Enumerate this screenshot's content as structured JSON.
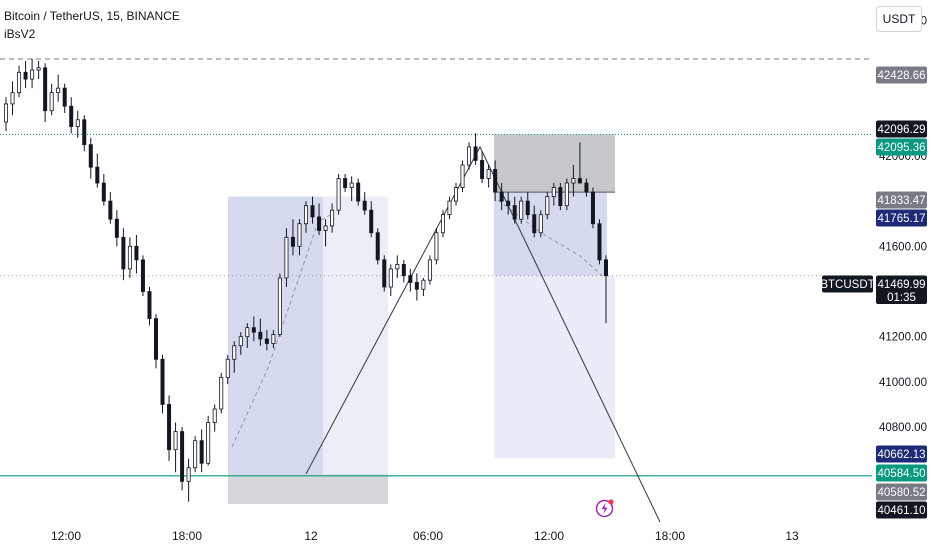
{
  "header": {
    "symbol_title": "Bitcoin / TetherUS, 15, BINANCE",
    "indicator": "iBsV2",
    "currency": "USDT"
  },
  "colors": {
    "up": "#ffffff",
    "down": "#131722",
    "box_blue": "#5c6bc0",
    "box_gray": "#787b86",
    "teal": "#089981",
    "navy": "#1e2a78",
    "trend": "#434651",
    "bolt": "#9c27b0"
  },
  "icons": {
    "alert": "bolt-icon"
  },
  "chart_data": {
    "type": "candlestick",
    "title": "Bitcoin / TetherUS, 15, BINANCE",
    "x_ticks": [
      "12:00",
      "18:00",
      "12",
      "06:00",
      "12:00",
      "18:00",
      "13"
    ],
    "y_ticks": [
      40800,
      41000,
      41200,
      41600,
      42000,
      42600
    ],
    "ylim": [
      40380,
      42690
    ],
    "grid": false,
    "price_badges": [
      {
        "name": "level",
        "value": "42428.66",
        "style": "gray"
      },
      {
        "name": "level",
        "value": "42096.29",
        "style": "black"
      },
      {
        "name": "level",
        "value": "42095.36",
        "style": "teal"
      },
      {
        "name": "level",
        "value": "41833.47",
        "style": "gray"
      },
      {
        "name": "level",
        "value": "41765.17",
        "style": "navy"
      },
      {
        "name": "symbol",
        "value": "BTCUSDT",
        "style": "black"
      },
      {
        "name": "last",
        "value": "41469.99",
        "style": "black"
      },
      {
        "name": "countdown",
        "value": "01:35",
        "style": "black"
      },
      {
        "name": "level",
        "value": "40662.13",
        "style": "navy"
      },
      {
        "name": "level",
        "value": "40584.50",
        "style": "teal"
      },
      {
        "name": "level",
        "value": "40580.52",
        "style": "gray"
      },
      {
        "name": "level",
        "value": "40461.10",
        "style": "black"
      }
    ],
    "candles": [
      [
        42150,
        42260,
        42110,
        42230
      ],
      [
        42230,
        42330,
        42180,
        42280
      ],
      [
        42280,
        42400,
        42260,
        42370
      ],
      [
        42370,
        42420,
        42300,
        42340
      ],
      [
        42340,
        42430,
        42300,
        42380
      ],
      [
        42380,
        42420,
        42340,
        42390
      ],
      [
        42390,
        42410,
        42150,
        42200
      ],
      [
        42200,
        42320,
        42180,
        42280
      ],
      [
        42280,
        42360,
        42240,
        42300
      ],
      [
        42300,
        42320,
        42190,
        42220
      ],
      [
        42220,
        42260,
        42100,
        42130
      ],
      [
        42130,
        42200,
        42080,
        42160
      ],
      [
        42160,
        42180,
        42020,
        42050
      ],
      [
        42050,
        42080,
        41900,
        41950
      ],
      [
        41950,
        42010,
        41860,
        41880
      ],
      [
        41880,
        41920,
        41780,
        41800
      ],
      [
        41800,
        41840,
        41700,
        41720
      ],
      [
        41720,
        41760,
        41600,
        41640
      ],
      [
        41640,
        41680,
        41450,
        41500
      ],
      [
        41500,
        41640,
        41460,
        41600
      ],
      [
        41600,
        41650,
        41480,
        41540
      ],
      [
        41540,
        41560,
        41380,
        41400
      ],
      [
        41400,
        41420,
        41250,
        41280
      ],
      [
        41280,
        41300,
        41060,
        41100
      ],
      [
        41100,
        41120,
        40860,
        40900
      ],
      [
        40900,
        40940,
        40650,
        40700
      ],
      [
        40700,
        40820,
        40600,
        40780
      ],
      [
        40780,
        40800,
        40520,
        40560
      ],
      [
        40560,
        40660,
        40470,
        40620
      ],
      [
        40620,
        40760,
        40600,
        40740
      ],
      [
        40740,
        40790,
        40600,
        40640
      ],
      [
        40640,
        40850,
        40630,
        40820
      ],
      [
        40820,
        40900,
        40780,
        40880
      ],
      [
        40880,
        41040,
        40860,
        41020
      ],
      [
        41020,
        41120,
        40990,
        41100
      ],
      [
        41100,
        41180,
        41040,
        41160
      ],
      [
        41160,
        41220,
        41120,
        41200
      ],
      [
        41200,
        41260,
        41150,
        41240
      ],
      [
        41240,
        41290,
        41180,
        41220
      ],
      [
        41220,
        41280,
        41160,
        41190
      ],
      [
        41190,
        41230,
        41140,
        41170
      ],
      [
        41170,
        41230,
        41150,
        41210
      ],
      [
        41210,
        41480,
        41200,
        41460
      ],
      [
        41460,
        41680,
        41420,
        41640
      ],
      [
        41640,
        41720,
        41560,
        41600
      ],
      [
        41600,
        41720,
        41560,
        41700
      ],
      [
        41700,
        41800,
        41660,
        41780
      ],
      [
        41780,
        41820,
        41700,
        41730
      ],
      [
        41730,
        41790,
        41650,
        41670
      ],
      [
        41670,
        41720,
        41600,
        41690
      ],
      [
        41690,
        41790,
        41660,
        41760
      ],
      [
        41760,
        41920,
        41740,
        41900
      ],
      [
        41900,
        41920,
        41840,
        41860
      ],
      [
        41860,
        41910,
        41800,
        41880
      ],
      [
        41880,
        41900,
        41780,
        41800
      ],
      [
        41800,
        41840,
        41740,
        41760
      ],
      [
        41760,
        41800,
        41640,
        41660
      ],
      [
        41660,
        41680,
        41520,
        41540
      ],
      [
        41540,
        41560,
        41400,
        41420
      ],
      [
        41420,
        41520,
        41380,
        41500
      ],
      [
        41500,
        41560,
        41460,
        41520
      ],
      [
        41520,
        41540,
        41440,
        41470
      ],
      [
        41470,
        41500,
        41400,
        41440
      ],
      [
        41440,
        41480,
        41360,
        41410
      ],
      [
        41410,
        41460,
        41380,
        41450
      ],
      [
        41450,
        41560,
        41430,
        41540
      ],
      [
        41540,
        41680,
        41520,
        41660
      ],
      [
        41660,
        41760,
        41640,
        41740
      ],
      [
        41740,
        41820,
        41720,
        41800
      ],
      [
        41800,
        41880,
        41780,
        41860
      ],
      [
        41860,
        41980,
        41840,
        41960
      ],
      [
        41960,
        42060,
        41940,
        42040
      ],
      [
        42040,
        42100,
        41960,
        41980
      ],
      [
        41980,
        42020,
        41880,
        41900
      ],
      [
        41900,
        41960,
        41860,
        41940
      ],
      [
        41940,
        41980,
        41800,
        41840
      ],
      [
        41840,
        41880,
        41760,
        41800
      ],
      [
        41800,
        41840,
        41740,
        41780
      ],
      [
        41780,
        41820,
        41700,
        41720
      ],
      [
        41720,
        41820,
        41700,
        41800
      ],
      [
        41800,
        41840,
        41720,
        41740
      ],
      [
        41740,
        41780,
        41640,
        41660
      ],
      [
        41660,
        41760,
        41640,
        41740
      ],
      [
        41740,
        41840,
        41720,
        41820
      ],
      [
        41820,
        41880,
        41780,
        41860
      ],
      [
        41860,
        41880,
        41760,
        41780
      ],
      [
        41780,
        41900,
        41760,
        41880
      ],
      [
        41880,
        41960,
        41820,
        41900
      ],
      [
        41900,
        42060,
        41880,
        41880
      ],
      [
        41880,
        41900,
        41820,
        41840
      ],
      [
        41840,
        41860,
        41680,
        41700
      ],
      [
        41700,
        41720,
        41520,
        41540
      ],
      [
        41540,
        41560,
        41260,
        41470
      ]
    ]
  }
}
